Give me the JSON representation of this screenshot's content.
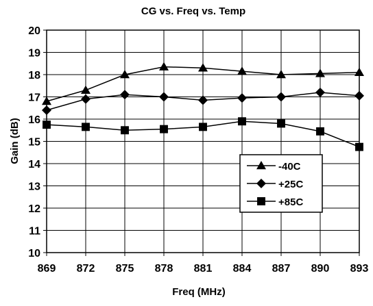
{
  "chart_data": {
    "type": "line",
    "title": "CG vs. Freq vs. Temp",
    "xlabel": "Freq (MHz)",
    "ylabel": "Gain (dB)",
    "categories": [
      "869",
      "872",
      "875",
      "878",
      "881",
      "884",
      "887",
      "890",
      "893"
    ],
    "ylim": [
      10,
      20
    ],
    "yticks": [
      "10",
      "11",
      "12",
      "13",
      "14",
      "15",
      "16",
      "17",
      "18",
      "19",
      "20"
    ],
    "grid": true,
    "legend_position": "lower-right",
    "series": [
      {
        "name": "-40C",
        "marker": "triangle",
        "values": [
          16.8,
          17.3,
          18.0,
          18.35,
          18.3,
          18.15,
          18.0,
          18.05,
          18.1
        ]
      },
      {
        "name": "+25C",
        "marker": "diamond",
        "values": [
          16.4,
          16.9,
          17.1,
          17.0,
          16.85,
          16.95,
          17.0,
          17.2,
          17.05
        ]
      },
      {
        "name": "+85C",
        "marker": "square",
        "values": [
          15.75,
          15.65,
          15.5,
          15.55,
          15.65,
          15.9,
          15.8,
          15.45,
          14.75
        ]
      }
    ]
  }
}
